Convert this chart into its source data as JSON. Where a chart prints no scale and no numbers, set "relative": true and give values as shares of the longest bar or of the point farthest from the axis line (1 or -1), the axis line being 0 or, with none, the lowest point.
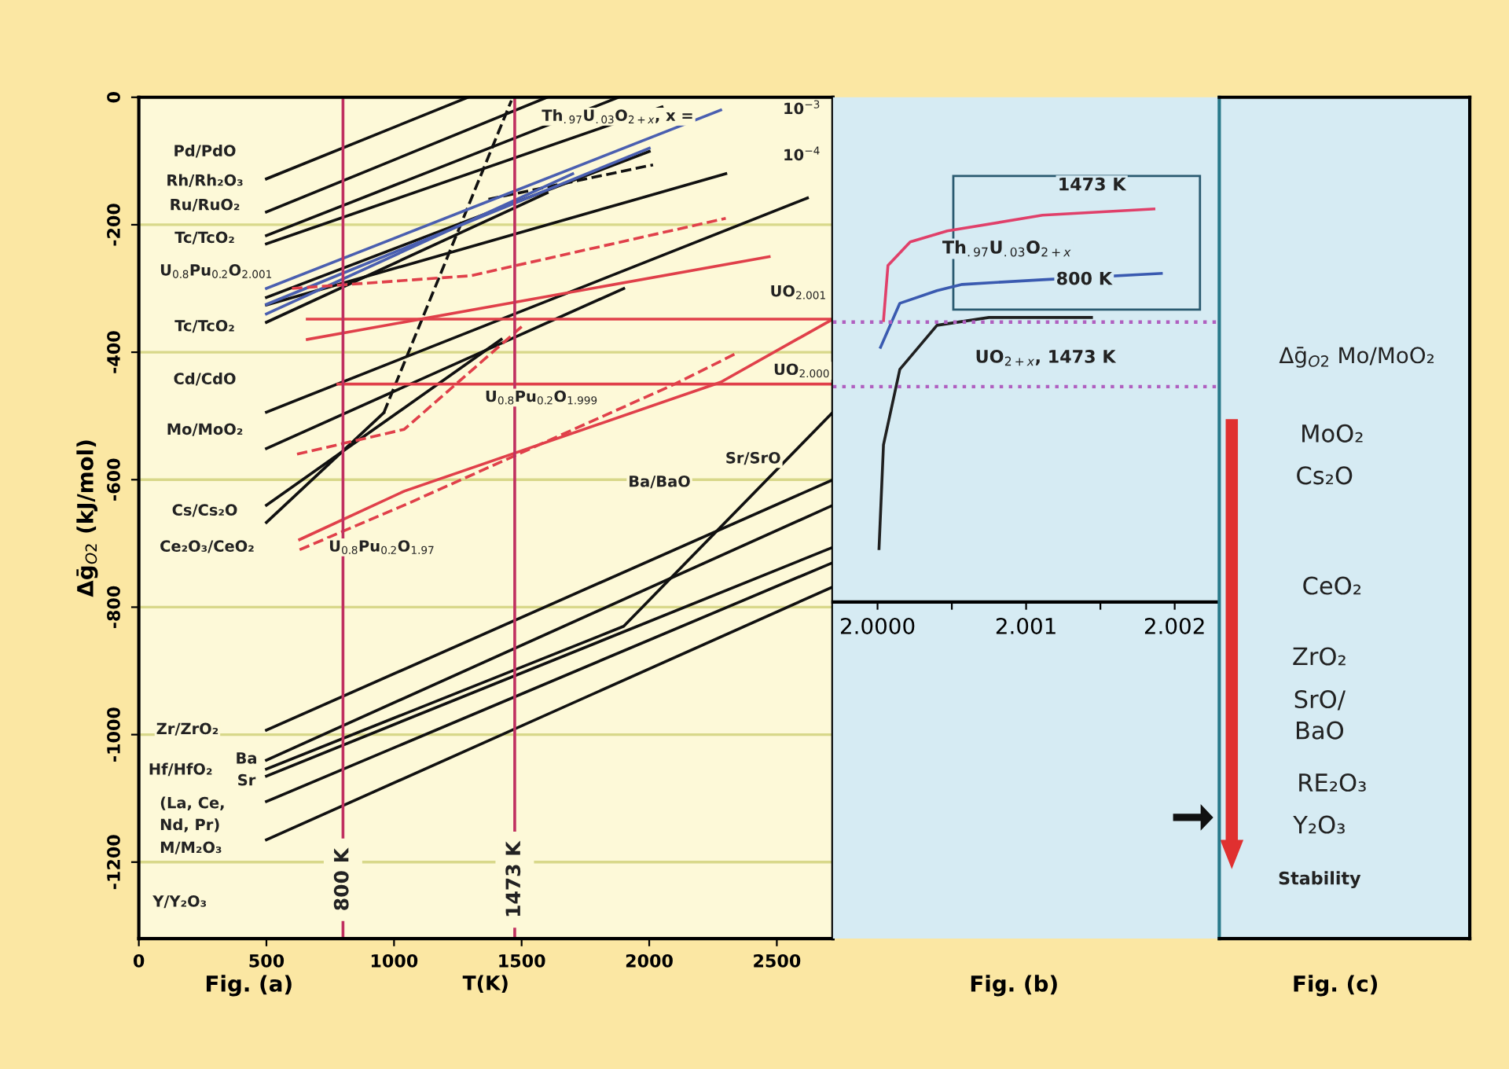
{
  "chart_data": [
    {
      "type": "line",
      "title": "Fig. (a)",
      "xlabel": "T(K)",
      "ylabel": "Δḡ$_{O2}$ (kJ/mol)",
      "xlim": [
        0,
        2720
      ],
      "xticks": [
        0,
        500,
        1000,
        1500,
        2000,
        2500
      ],
      "ylim": [
        -1320,
        0
      ],
      "yticks": [
        -1200,
        -1000,
        -800,
        -600,
        -400,
        -200,
        0
      ],
      "grid": "y",
      "marker": "none",
      "line_style": "solid",
      "series": [
        {
          "color": "#111111",
          "x": [
            500,
            1290
          ],
          "values": [
            -128,
            0
          ]
        },
        {
          "color": "#111111",
          "x": [
            500,
            1600
          ],
          "values": [
            -180,
            0
          ]
        },
        {
          "color": "#111111",
          "x": [
            500,
            1880
          ],
          "values": [
            -217,
            0
          ]
        },
        {
          "color": "#111111",
          "x": [
            500,
            2050
          ],
          "values": [
            -230,
            -15
          ]
        },
        {
          "color": "#111111",
          "x": [
            500,
            2000
          ],
          "values": [
            -314,
            -85
          ]
        },
        {
          "color": "#111111",
          "x": [
            500,
            2300
          ],
          "values": [
            -326,
            -120
          ]
        },
        {
          "color": "#111111",
          "x": [
            500,
            1600
          ],
          "values": [
            -353,
            -150
          ]
        },
        {
          "color": "#111111",
          "x": [
            500,
            2620
          ],
          "values": [
            -494,
            -158
          ]
        },
        {
          "color": "#111111",
          "x": [
            500,
            1900
          ],
          "values": [
            -551,
            -300
          ]
        },
        {
          "color": "#111111",
          "x": [
            500,
            1420
          ],
          "values": [
            -640,
            -380
          ]
        },
        {
          "color": "#111111",
          "x": [
            500,
            960
          ],
          "values": [
            -667,
            -495
          ]
        },
        {
          "color": "#111111",
          "x": [
            960,
            1460
          ],
          "values": [
            -495,
            -5
          ],
          "line_style": "dashed"
        },
        {
          "color": "#111111",
          "x": [
            1370,
            2015
          ],
          "values": [
            -160,
            -106
          ],
          "line_style": "dashed"
        },
        {
          "color": "#4a5fb0",
          "x": [
            500,
            2280
          ],
          "values": [
            -300,
            -20
          ]
        },
        {
          "color": "#4a5fb0",
          "x": [
            500,
            2000
          ],
          "values": [
            -325,
            -80
          ]
        },
        {
          "color": "#4a5fb0",
          "x": [
            500,
            1700
          ],
          "values": [
            -340,
            -120
          ]
        },
        {
          "color": "#e0404a",
          "x": [
            600,
            1300,
            2300
          ],
          "values": [
            -300,
            -280,
            -190
          ],
          "line_style": "dashed"
        },
        {
          "color": "#e0404a",
          "x": [
            660,
            2470
          ],
          "values": [
            -380,
            -250
          ]
        },
        {
          "color": "#e0404a",
          "x": [
            660,
            2720
          ],
          "values": [
            -348,
            -348
          ]
        },
        {
          "color": "#e0404a",
          "x": [
            780,
            2720
          ],
          "values": [
            -450,
            -450
          ]
        },
        {
          "color": "#e0404a",
          "x": [
            630,
            1040,
            2280,
            2720
          ],
          "values": [
            -694,
            -618,
            -447,
            -348
          ]
        },
        {
          "color": "#e0404a",
          "x": [
            630,
            1040,
            2100,
            2350
          ],
          "values": [
            -710,
            -640,
            -450,
            -400
          ],
          "line_style": "dashed"
        },
        {
          "color": "#e0404a",
          "x": [
            620,
            1040,
            1500
          ],
          "values": [
            -560,
            -521,
            -360
          ],
          "line_style": "dashed"
        },
        {
          "color": "#111111",
          "x": [
            500,
            2720
          ],
          "values": [
            -993,
            -600
          ]
        },
        {
          "color": "#111111",
          "x": [
            500,
            2720
          ],
          "values": [
            -1040,
            -640
          ]
        },
        {
          "color": "#111111",
          "x": [
            500,
            1900,
            2720
          ],
          "values": [
            -1054,
            -830,
            -494
          ]
        },
        {
          "color": "#111111",
          "x": [
            500,
            2720
          ],
          "values": [
            -1065,
            -706
          ]
        },
        {
          "color": "#111111",
          "x": [
            500,
            2720
          ],
          "values": [
            -1105,
            -730
          ]
        },
        {
          "color": "#111111",
          "x": [
            500,
            2720
          ],
          "values": [
            -1165,
            -768
          ]
        }
      ],
      "ref_lines": [
        {
          "axis": "x",
          "value": 800,
          "label": "800 K",
          "color": "#c03060"
        },
        {
          "axis": "x",
          "value": 1473,
          "label": "1473 K",
          "color": "#c03060"
        }
      ],
      "annotations": [
        "Pd/PdO",
        "Rh/Rh₂O₃",
        "Ru/RuO₂",
        "Tc/TcO₂",
        "U$_{0.8}$Pu$_{0.2}$O$_{2.001}$",
        "Tc/TcO₂",
        "Cd/CdO",
        "Mo/MoO₂",
        "Cs/Cs₂O",
        "Ce₂O₃/CeO₂",
        "Zr/ZrO₂",
        "Hf/HfO₂",
        "Ba",
        "Sr",
        "(La, Ce,",
        "Nd, Pr)",
        "M/M₂O₃",
        "Y/Y₂O₃",
        "Th$_{.97}$U$_{.03}$O$_{2+x}$, x =",
        "10$^{−3}$",
        "10$^{−4}$",
        "UO$_{2.001}$",
        "UO$_{2.000}$",
        "U$_{0.8}$Pu$_{0.2}$O$_{1.999}$",
        "U$_{0.8}$Pu$_{0.2}$O$_{1.97}$",
        "Sr/SrO",
        "Ba/BaO"
      ]
    },
    {
      "type": "line",
      "title": "Fig. (b)",
      "relative": true,
      "marker": "none",
      "line_style": "solid",
      "xlim": [
        1.9997,
        2.0023
      ],
      "xticks": [
        {
          "value": 2.0,
          "label": "2.0000"
        },
        {
          "value": 2.0005,
          "label": null
        },
        {
          "value": 2.001,
          "label": "2.001"
        },
        {
          "value": 2.0015,
          "label": null
        },
        {
          "value": 2.002,
          "label": "2.002"
        }
      ],
      "series": [
        {
          "color": "#e0406a",
          "x": [
            2.00004,
            2.00007,
            2.00022,
            2.00047,
            2.00111,
            2.00186
          ],
          "values": [
            0.716,
            0.856,
            0.916,
            0.944,
            0.984,
            1.0
          ]
        },
        {
          "color": "#3a5ab0",
          "x": [
            2.00002,
            2.00015,
            2.0004,
            2.00057,
            2.00111,
            2.00191
          ],
          "values": [
            0.648,
            0.76,
            0.792,
            0.808,
            0.82,
            0.836
          ]
        },
        {
          "color": "#202020",
          "x": [
            2.00001,
            2.00004,
            2.00015,
            2.0004,
            2.00075,
            2.00144
          ],
          "values": [
            0.136,
            0.4,
            0.592,
            0.704,
            0.724,
            0.724
          ]
        }
      ],
      "ref_lines": [
        {
          "axis": "y",
          "value": 0.712,
          "color": "#b060c0",
          "line_style": "dotted"
        },
        {
          "axis": "y",
          "value": 0.548,
          "color": "#b060c0",
          "line_style": "dotted"
        }
      ],
      "annotations": [
        "1473 K",
        "Th$_{.97}$U$_{.03}$O$_{2+x}$",
        "800 K",
        "UO$_{2+x}$, 1473 K"
      ]
    },
    {
      "type": "other",
      "title": "Fig. (c)",
      "annotations": [
        "Δḡ$_{O2}$ Mo/MoO₂",
        "MoO₂",
        "Cs₂O",
        "CeO₂",
        "ZrO₂",
        "SrO/",
        "BaO",
        "RE₂O₃",
        "Y₂O₃",
        "Stability"
      ]
    }
  ]
}
